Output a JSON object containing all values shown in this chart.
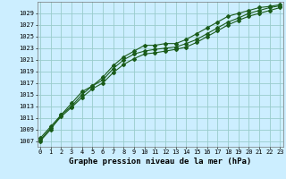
{
  "title": "Graphe pression niveau de la mer (hPa)",
  "bg_color": "#cceeff",
  "grid_color": "#99cccc",
  "line_color": "#1a5c1a",
  "x_values": [
    0,
    1,
    2,
    3,
    4,
    5,
    6,
    7,
    8,
    9,
    10,
    11,
    12,
    13,
    14,
    15,
    16,
    17,
    18,
    19,
    20,
    21,
    22,
    23
  ],
  "series1": [
    1007.0,
    1009.0,
    1011.5,
    1013.5,
    1015.5,
    1016.5,
    1018.0,
    1020.0,
    1021.5,
    1022.5,
    1023.5,
    1023.5,
    1023.8,
    1023.8,
    1024.5,
    1025.5,
    1026.5,
    1027.5,
    1028.5,
    1029.0,
    1029.5,
    1030.0,
    1030.2,
    1030.5
  ],
  "series2": [
    1007.5,
    1009.5,
    1011.5,
    1013.0,
    1015.0,
    1016.5,
    1017.5,
    1019.5,
    1021.0,
    1022.0,
    1022.5,
    1022.8,
    1023.0,
    1023.2,
    1023.8,
    1024.5,
    1025.5,
    1026.5,
    1027.5,
    1028.2,
    1029.0,
    1029.5,
    1030.0,
    1030.3
  ],
  "series3": [
    1007.2,
    1009.2,
    1011.2,
    1012.8,
    1014.5,
    1016.0,
    1017.0,
    1018.8,
    1020.2,
    1021.2,
    1022.0,
    1022.2,
    1022.5,
    1022.8,
    1023.2,
    1024.0,
    1025.0,
    1026.0,
    1027.0,
    1027.8,
    1028.5,
    1029.0,
    1029.5,
    1030.0
  ],
  "ylim": [
    1006,
    1031
  ],
  "yticks": [
    1007,
    1009,
    1011,
    1013,
    1015,
    1017,
    1019,
    1021,
    1023,
    1025,
    1027,
    1029
  ],
  "xlim": [
    -0.3,
    23.3
  ],
  "xticks": [
    0,
    1,
    2,
    3,
    4,
    5,
    6,
    7,
    8,
    9,
    10,
    11,
    12,
    13,
    14,
    15,
    16,
    17,
    18,
    19,
    20,
    21,
    22,
    23
  ],
  "title_fontsize": 6.5,
  "tick_fontsize": 5.0,
  "marker": "D",
  "marker_size": 2.0,
  "line_width": 0.8
}
